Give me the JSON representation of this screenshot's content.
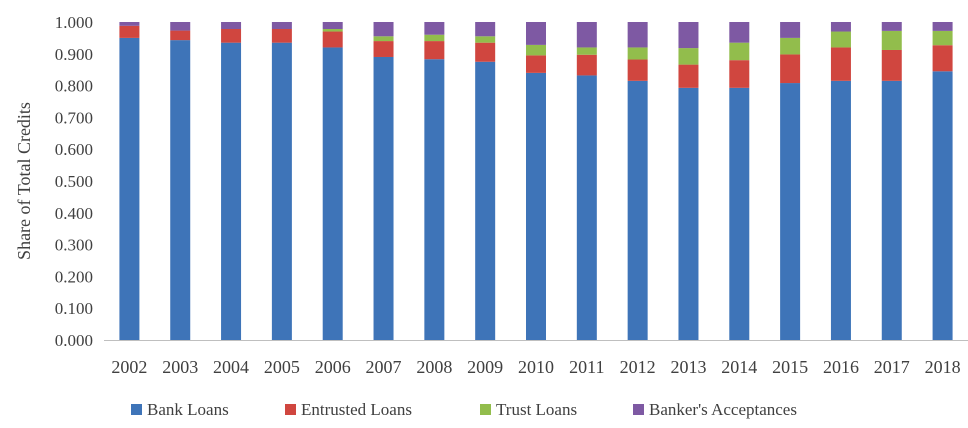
{
  "chart_data": {
    "type": "bar",
    "stacked": true,
    "title": "",
    "xlabel": "",
    "ylabel": "Share of Total Credits",
    "ylim": [
      0,
      1
    ],
    "y_ticks": [
      "0.000",
      "0.100",
      "0.200",
      "0.300",
      "0.400",
      "0.500",
      "0.600",
      "0.700",
      "0.800",
      "0.900",
      "1.000"
    ],
    "grid": false,
    "legend_position": "bottom",
    "categories": [
      "2002",
      "2003",
      "2004",
      "2005",
      "2006",
      "2007",
      "2008",
      "2009",
      "2010",
      "2011",
      "2012",
      "2013",
      "2014",
      "2015",
      "2016",
      "2017",
      "2018"
    ],
    "series": [
      {
        "name": "Bank Loans",
        "color": "#3E74B8",
        "values": [
          0.95,
          0.943,
          0.935,
          0.935,
          0.92,
          0.89,
          0.883,
          0.875,
          0.84,
          0.832,
          0.815,
          0.793,
          0.793,
          0.808,
          0.815,
          0.815,
          0.845
        ]
      },
      {
        "name": "Entrusted Loans",
        "color": "#D0463F",
        "values": [
          0.038,
          0.03,
          0.043,
          0.043,
          0.05,
          0.05,
          0.057,
          0.06,
          0.055,
          0.065,
          0.067,
          0.073,
          0.087,
          0.09,
          0.105,
          0.097,
          0.082
        ]
      },
      {
        "name": "Trust Loans",
        "color": "#92BD4C",
        "values": [
          0.0,
          0.0,
          0.0,
          0.0,
          0.008,
          0.015,
          0.02,
          0.02,
          0.033,
          0.023,
          0.038,
          0.052,
          0.055,
          0.052,
          0.05,
          0.06,
          0.045
        ]
      },
      {
        "name": "Banker's Acceptances",
        "color": "#7E59A3",
        "values": [
          0.012,
          0.027,
          0.022,
          0.022,
          0.022,
          0.045,
          0.04,
          0.045,
          0.072,
          0.08,
          0.08,
          0.082,
          0.065,
          0.05,
          0.03,
          0.028,
          0.028
        ]
      }
    ]
  }
}
